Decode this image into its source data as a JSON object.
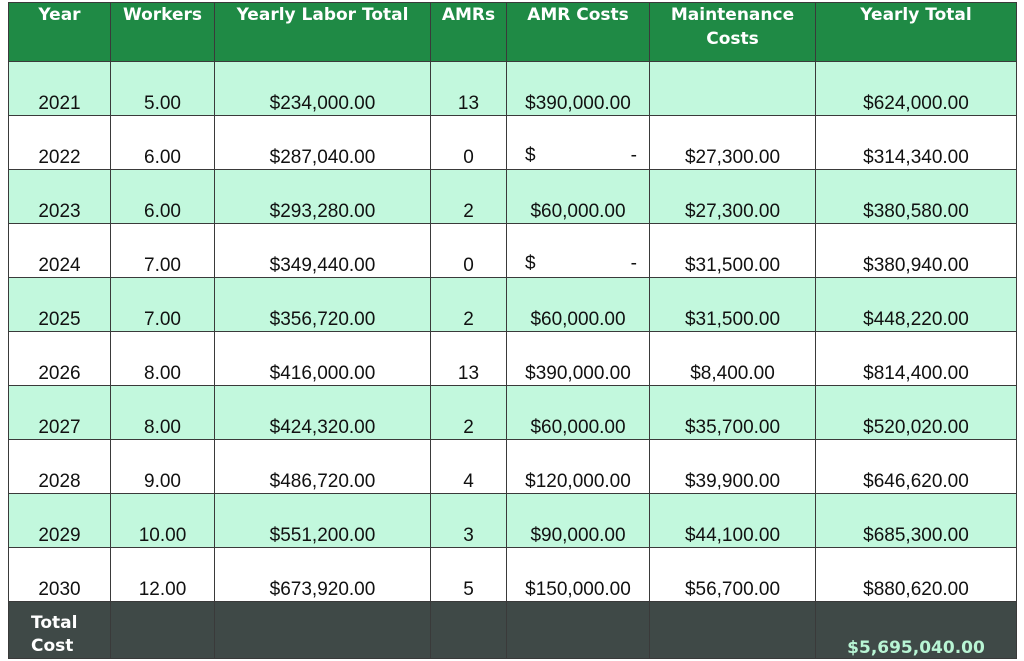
{
  "columns": [
    "Year",
    "Workers",
    "Yearly Labor Total",
    "AMRs",
    "AMR Costs",
    "Maintenance Costs",
    "Yearly Total"
  ],
  "rows": [
    {
      "year": "2021",
      "workers": "5.00",
      "labor": "$234,000.00",
      "amrs": "13",
      "amr_cost": "$390,000.00",
      "maintenance": "",
      "total": "$624,000.00"
    },
    {
      "year": "2022",
      "workers": "6.00",
      "labor": "$287,040.00",
      "amrs": "0",
      "amr_cost_sign": "$",
      "amr_cost_dash": "-",
      "maintenance": "$27,300.00",
      "total": "$314,340.00"
    },
    {
      "year": "2023",
      "workers": "6.00",
      "labor": "$293,280.00",
      "amrs": "2",
      "amr_cost": "$60,000.00",
      "maintenance": "$27,300.00",
      "total": "$380,580.00"
    },
    {
      "year": "2024",
      "workers": "7.00",
      "labor": "$349,440.00",
      "amrs": "0",
      "amr_cost_sign": "$",
      "amr_cost_dash": "-",
      "maintenance": "$31,500.00",
      "total": "$380,940.00"
    },
    {
      "year": "2025",
      "workers": "7.00",
      "labor": "$356,720.00",
      "amrs": "2",
      "amr_cost": "$60,000.00",
      "maintenance": "$31,500.00",
      "total": "$448,220.00"
    },
    {
      "year": "2026",
      "workers": "8.00",
      "labor": "$416,000.00",
      "amrs": "13",
      "amr_cost": "$390,000.00",
      "maintenance": "$8,400.00",
      "total": "$814,400.00"
    },
    {
      "year": "2027",
      "workers": "8.00",
      "labor": "$424,320.00",
      "amrs": "2",
      "amr_cost": "$60,000.00",
      "maintenance": "$35,700.00",
      "total": "$520,020.00"
    },
    {
      "year": "2028",
      "workers": "9.00",
      "labor": "$486,720.00",
      "amrs": "4",
      "amr_cost": "$120,000.00",
      "maintenance": "$39,900.00",
      "total": "$646,620.00"
    },
    {
      "year": "2029",
      "workers": "10.00",
      "labor": "$551,200.00",
      "amrs": "3",
      "amr_cost": "$90,000.00",
      "maintenance": "$44,100.00",
      "total": "$685,300.00"
    },
    {
      "year": "2030",
      "workers": "12.00",
      "labor": "$673,920.00",
      "amrs": "5",
      "amr_cost": "$150,000.00",
      "maintenance": "$56,700.00",
      "total": "$880,620.00"
    }
  ],
  "footer": {
    "label_line1": "Total",
    "label_line2": "Cost",
    "grand_total": "$5,695,040.00"
  },
  "colors": {
    "header_green": "#1f8a45",
    "band_mint": "#c2f8dd",
    "footer_slate": "#3f4947",
    "footer_total_text": "#b8f5d4"
  }
}
